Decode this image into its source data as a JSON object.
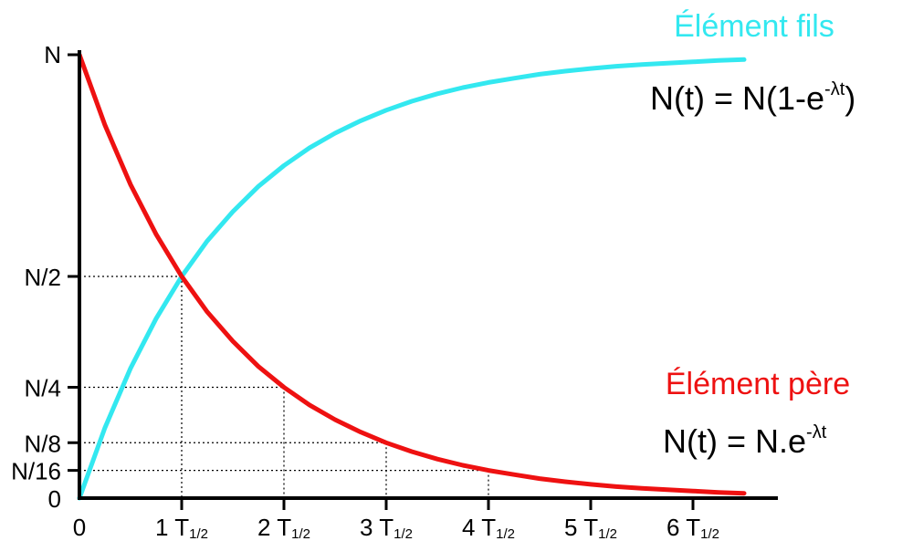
{
  "chart_data": {
    "type": "line",
    "title": "",
    "xlabel": "",
    "ylabel": "",
    "xlim": [
      0,
      6.5
    ],
    "ylim": [
      0,
      1
    ],
    "x_ticks": [
      {
        "value": 0,
        "label": "0",
        "sub": ""
      },
      {
        "value": 1,
        "label": "1 T",
        "sub": "1/2"
      },
      {
        "value": 2,
        "label": "2 T",
        "sub": "1/2"
      },
      {
        "value": 3,
        "label": "3 T",
        "sub": "1/2"
      },
      {
        "value": 4,
        "label": "4 T",
        "sub": "1/2"
      },
      {
        "value": 5,
        "label": "5 T",
        "sub": "1/2"
      },
      {
        "value": 6,
        "label": "6 T",
        "sub": "1/2"
      }
    ],
    "y_ticks": [
      {
        "value": 0,
        "label": "0"
      },
      {
        "value": 0.0625,
        "label": "N/16"
      },
      {
        "value": 0.125,
        "label": "N/8"
      },
      {
        "value": 0.25,
        "label": "N/4"
      },
      {
        "value": 0.5,
        "label": "N/2"
      },
      {
        "value": 1,
        "label": "N"
      }
    ],
    "guides": [
      {
        "x": 1,
        "y": 0.5
      },
      {
        "x": 2,
        "y": 0.25
      },
      {
        "x": 3,
        "y": 0.125
      },
      {
        "x": 4,
        "y": 0.0625
      }
    ],
    "x": [
      0,
      0.25,
      0.5,
      0.75,
      1,
      1.25,
      1.5,
      1.75,
      2,
      2.25,
      2.5,
      2.75,
      3,
      3.25,
      3.5,
      3.75,
      4,
      4.25,
      4.5,
      4.75,
      5,
      5.25,
      5.5,
      5.75,
      6,
      6.25,
      6.5
    ],
    "series": [
      {
        "name": "Élément fils",
        "color": "#33e8f0",
        "values": [
          0,
          0.159,
          0.293,
          0.405,
          0.5,
          0.58,
          0.646,
          0.703,
          0.75,
          0.79,
          0.823,
          0.851,
          0.875,
          0.895,
          0.912,
          0.926,
          0.9375,
          0.947,
          0.956,
          0.963,
          0.969,
          0.974,
          0.978,
          0.981,
          0.984,
          0.987,
          0.989
        ],
        "formula": {
          "main": "N(t) = N(1-e",
          "sup": "-λt",
          "tail": ")"
        }
      },
      {
        "name": "Élément père",
        "color": "#ee1111",
        "values": [
          1,
          0.841,
          0.707,
          0.595,
          0.5,
          0.42,
          0.354,
          0.297,
          0.25,
          0.21,
          0.177,
          0.149,
          0.125,
          0.105,
          0.088,
          0.074,
          0.0625,
          0.053,
          0.044,
          0.037,
          0.031,
          0.026,
          0.022,
          0.019,
          0.016,
          0.013,
          0.011
        ],
        "formula": {
          "main": "N(t) = N.e",
          "sup": "-λt",
          "tail": ""
        }
      }
    ],
    "grid": false,
    "legend": "inline"
  }
}
